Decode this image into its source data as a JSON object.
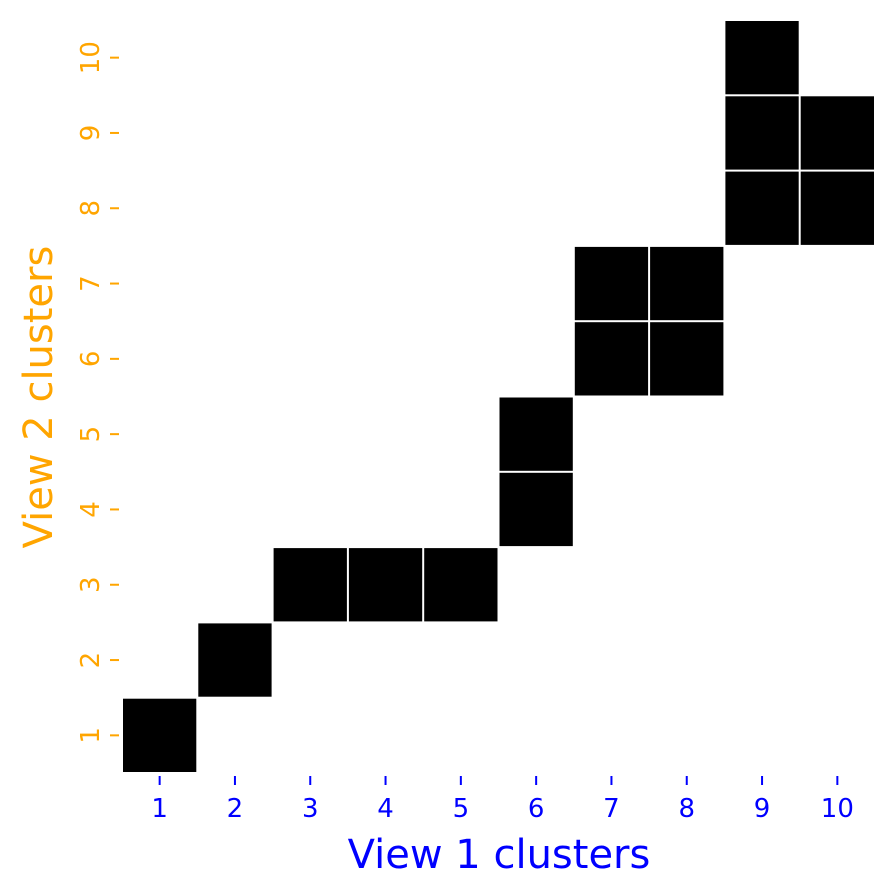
{
  "chart_data": {
    "type": "heatmap",
    "title": "",
    "xlabel": "View 1 clusters",
    "ylabel": "View 2 clusters",
    "x_categories": [
      "1",
      "2",
      "3",
      "4",
      "5",
      "6",
      "7",
      "8",
      "9",
      "10"
    ],
    "y_categories": [
      "1",
      "2",
      "3",
      "4",
      "5",
      "6",
      "7",
      "8",
      "9",
      "10"
    ],
    "cells": [
      {
        "x": 1,
        "y": 1
      },
      {
        "x": 2,
        "y": 2
      },
      {
        "x": 3,
        "y": 3
      },
      {
        "x": 4,
        "y": 3
      },
      {
        "x": 5,
        "y": 3
      },
      {
        "x": 6,
        "y": 4
      },
      {
        "x": 6,
        "y": 5
      },
      {
        "x": 7,
        "y": 6
      },
      {
        "x": 8,
        "y": 6
      },
      {
        "x": 7,
        "y": 7
      },
      {
        "x": 8,
        "y": 7
      },
      {
        "x": 9,
        "y": 8
      },
      {
        "x": 10,
        "y": 8
      },
      {
        "x": 9,
        "y": 9
      },
      {
        "x": 10,
        "y": 9
      },
      {
        "x": 9,
        "y": 10
      }
    ],
    "colors": {
      "filled_cell": "#000000",
      "cell_border": "#ffffff",
      "x_axis": "#0000ff",
      "y_axis": "#ffa500"
    },
    "grid": false,
    "legend": "none"
  }
}
